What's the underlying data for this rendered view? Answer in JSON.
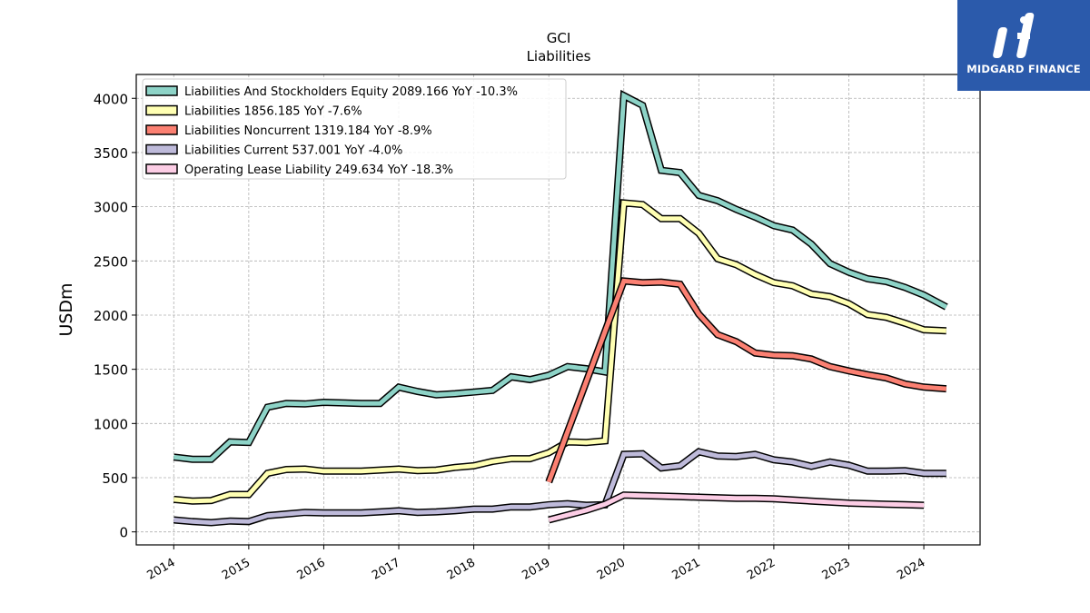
{
  "brand": {
    "name": "MIDGARD FINANCE",
    "bg_color": "#2b5aab"
  },
  "chart_data": {
    "type": "line",
    "title": "GCI",
    "subtitle": "Liabilities",
    "ylabel": "USDm",
    "xlabel": "",
    "xlim": [
      2013.5,
      2024.75
    ],
    "ylim": [
      -120,
      4220
    ],
    "yticks": [
      0,
      500,
      1000,
      1500,
      2000,
      2500,
      3000,
      3500,
      4000
    ],
    "xticks": [
      "2014",
      "2015",
      "2016",
      "2017",
      "2018",
      "2019",
      "2020",
      "2021",
      "2022",
      "2023",
      "2024"
    ],
    "grid": true,
    "legend_position": "top-left",
    "series": [
      {
        "name": "Liabilities And Stockholders Equity  2089.166 YoY -10.3%",
        "color": "#8dd3c7",
        "points": [
          [
            2014.0,
            690
          ],
          [
            2014.25,
            670
          ],
          [
            2014.5,
            670
          ],
          [
            2014.75,
            830
          ],
          [
            2015.0,
            825
          ],
          [
            2015.25,
            1150
          ],
          [
            2015.5,
            1185
          ],
          [
            2015.75,
            1180
          ],
          [
            2016.0,
            1195
          ],
          [
            2016.25,
            1190
          ],
          [
            2016.5,
            1185
          ],
          [
            2016.75,
            1185
          ],
          [
            2017.0,
            1335
          ],
          [
            2017.25,
            1295
          ],
          [
            2017.5,
            1265
          ],
          [
            2017.75,
            1275
          ],
          [
            2018.0,
            1290
          ],
          [
            2018.25,
            1305
          ],
          [
            2018.5,
            1430
          ],
          [
            2018.75,
            1405
          ],
          [
            2019.0,
            1445
          ],
          [
            2019.25,
            1525
          ],
          [
            2019.5,
            1505
          ],
          [
            2019.75,
            1475
          ],
          [
            2020.0,
            4025
          ],
          [
            2020.25,
            3935
          ],
          [
            2020.5,
            3335
          ],
          [
            2020.75,
            3315
          ],
          [
            2021.0,
            3105
          ],
          [
            2021.25,
            3055
          ],
          [
            2021.5,
            2975
          ],
          [
            2021.75,
            2905
          ],
          [
            2022.0,
            2825
          ],
          [
            2022.25,
            2785
          ],
          [
            2022.5,
            2655
          ],
          [
            2022.75,
            2475
          ],
          [
            2023.0,
            2395
          ],
          [
            2023.25,
            2335
          ],
          [
            2023.5,
            2310
          ],
          [
            2023.75,
            2255
          ],
          [
            2024.0,
            2185
          ],
          [
            2024.3,
            2075
          ]
        ]
      },
      {
        "name": "Liabilities  1856.185 YoY -7.6%",
        "color": "#ffffb3",
        "points": [
          [
            2014.0,
            300
          ],
          [
            2014.25,
            285
          ],
          [
            2014.5,
            290
          ],
          [
            2014.75,
            345
          ],
          [
            2015.0,
            345
          ],
          [
            2015.25,
            540
          ],
          [
            2015.5,
            575
          ],
          [
            2015.75,
            580
          ],
          [
            2016.0,
            560
          ],
          [
            2016.25,
            560
          ],
          [
            2016.5,
            560
          ],
          [
            2016.75,
            570
          ],
          [
            2017.0,
            580
          ],
          [
            2017.25,
            565
          ],
          [
            2017.5,
            570
          ],
          [
            2017.75,
            595
          ],
          [
            2018.0,
            610
          ],
          [
            2018.25,
            650
          ],
          [
            2018.5,
            675
          ],
          [
            2018.75,
            675
          ],
          [
            2019.0,
            730
          ],
          [
            2019.25,
            830
          ],
          [
            2019.5,
            825
          ],
          [
            2019.75,
            840
          ],
          [
            2020.0,
            3035
          ],
          [
            2020.25,
            3020
          ],
          [
            2020.5,
            2890
          ],
          [
            2020.75,
            2890
          ],
          [
            2021.0,
            2755
          ],
          [
            2021.25,
            2520
          ],
          [
            2021.5,
            2465
          ],
          [
            2021.75,
            2375
          ],
          [
            2022.0,
            2300
          ],
          [
            2022.25,
            2270
          ],
          [
            2022.5,
            2195
          ],
          [
            2022.75,
            2170
          ],
          [
            2023.0,
            2105
          ],
          [
            2023.25,
            2005
          ],
          [
            2023.5,
            1980
          ],
          [
            2023.75,
            1925
          ],
          [
            2024.0,
            1865
          ],
          [
            2024.3,
            1855
          ]
        ]
      },
      {
        "name": "Liabilities Noncurrent  1319.184 YoY -8.9%",
        "color": "#fb8072",
        "points": [
          [
            2019.0,
            460
          ],
          [
            2020.0,
            2315
          ],
          [
            2020.25,
            2300
          ],
          [
            2020.5,
            2305
          ],
          [
            2020.75,
            2285
          ],
          [
            2021.0,
            2010
          ],
          [
            2021.25,
            1820
          ],
          [
            2021.5,
            1755
          ],
          [
            2021.75,
            1650
          ],
          [
            2022.0,
            1630
          ],
          [
            2022.25,
            1625
          ],
          [
            2022.5,
            1595
          ],
          [
            2022.75,
            1525
          ],
          [
            2023.0,
            1485
          ],
          [
            2023.25,
            1450
          ],
          [
            2023.5,
            1420
          ],
          [
            2023.75,
            1365
          ],
          [
            2024.0,
            1335
          ],
          [
            2024.3,
            1320
          ]
        ]
      },
      {
        "name": "Liabilities Current  537.001 YoY -4.0%",
        "color": "#bebada",
        "points": [
          [
            2014.0,
            110
          ],
          [
            2014.25,
            95
          ],
          [
            2014.5,
            85
          ],
          [
            2014.75,
            100
          ],
          [
            2015.0,
            95
          ],
          [
            2015.25,
            150
          ],
          [
            2015.5,
            165
          ],
          [
            2015.75,
            180
          ],
          [
            2016.0,
            175
          ],
          [
            2016.25,
            175
          ],
          [
            2016.5,
            175
          ],
          [
            2016.75,
            185
          ],
          [
            2017.0,
            195
          ],
          [
            2017.25,
            180
          ],
          [
            2017.5,
            185
          ],
          [
            2017.75,
            195
          ],
          [
            2018.0,
            210
          ],
          [
            2018.25,
            210
          ],
          [
            2018.5,
            230
          ],
          [
            2018.75,
            230
          ],
          [
            2019.0,
            250
          ],
          [
            2019.25,
            260
          ],
          [
            2019.5,
            245
          ],
          [
            2019.75,
            250
          ],
          [
            2020.0,
            715
          ],
          [
            2020.25,
            720
          ],
          [
            2020.5,
            590
          ],
          [
            2020.75,
            610
          ],
          [
            2021.0,
            740
          ],
          [
            2021.25,
            700
          ],
          [
            2021.5,
            695
          ],
          [
            2021.75,
            715
          ],
          [
            2022.0,
            665
          ],
          [
            2022.25,
            645
          ],
          [
            2022.5,
            605
          ],
          [
            2022.75,
            645
          ],
          [
            2023.0,
            615
          ],
          [
            2023.25,
            560
          ],
          [
            2023.5,
            560
          ],
          [
            2023.75,
            565
          ],
          [
            2024.0,
            540
          ],
          [
            2024.3,
            540
          ]
        ]
      },
      {
        "name": "Operating Lease Liability  249.634 YoY -18.3%",
        "color": "#fccde5",
        "points": [
          [
            2019.0,
            110
          ],
          [
            2019.5,
            200
          ],
          [
            2019.75,
            255
          ],
          [
            2020.0,
            340
          ],
          [
            2020.25,
            335
          ],
          [
            2020.5,
            330
          ],
          [
            2020.75,
            325
          ],
          [
            2021.0,
            320
          ],
          [
            2021.25,
            315
          ],
          [
            2021.5,
            310
          ],
          [
            2021.75,
            310
          ],
          [
            2022.0,
            305
          ],
          [
            2022.25,
            295
          ],
          [
            2022.5,
            285
          ],
          [
            2022.75,
            275
          ],
          [
            2023.0,
            265
          ],
          [
            2023.25,
            260
          ],
          [
            2023.5,
            255
          ],
          [
            2023.75,
            250
          ],
          [
            2024.0,
            245
          ]
        ]
      }
    ]
  }
}
